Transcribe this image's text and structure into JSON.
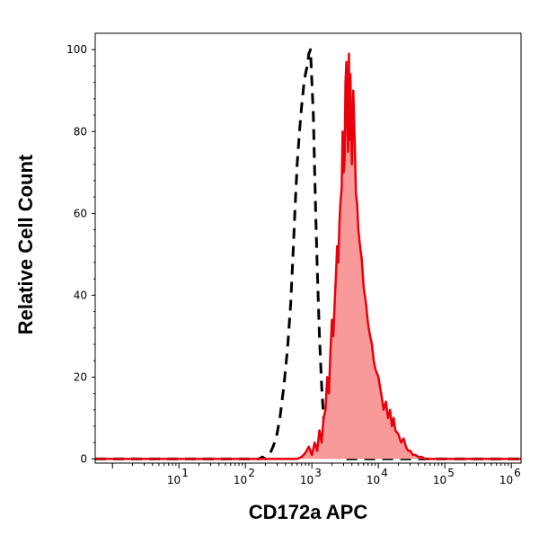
{
  "chart_data": {
    "type": "area",
    "title": "",
    "xlabel": "CD172a APC",
    "ylabel": "Relative Cell Count",
    "x_scale": "log",
    "xlim": [
      0.55,
      1400000
    ],
    "ylim": [
      -1,
      104
    ],
    "x_ticks": [
      {
        "value": 10,
        "base": "10",
        "exp": "1"
      },
      {
        "value": 100,
        "base": "10",
        "exp": "2"
      },
      {
        "value": 1000,
        "base": "10",
        "exp": "3"
      },
      {
        "value": 10000,
        "base": "10",
        "exp": "4"
      },
      {
        "value": 100000,
        "base": "10",
        "exp": "5"
      },
      {
        "value": 1000000,
        "base": "10",
        "exp": "6"
      }
    ],
    "y_ticks": [
      {
        "value": 0,
        "label": "0"
      },
      {
        "value": 20,
        "label": "20"
      },
      {
        "value": 40,
        "label": "40"
      },
      {
        "value": 60,
        "label": "60"
      },
      {
        "value": 80,
        "label": "80"
      },
      {
        "value": 100,
        "label": "100"
      }
    ],
    "grid": false,
    "series": [
      {
        "style": "dashed",
        "color": "#000000",
        "fill": "none",
        "x": [
          0.55,
          160,
          180,
          200,
          230,
          260,
          290,
          330,
          380,
          430,
          480,
          520,
          560,
          600,
          650,
          700,
          750,
          800,
          850,
          900,
          950,
          1000,
          1050,
          1100,
          1150,
          1200,
          1300,
          1400,
          1500,
          1700,
          1900,
          2100,
          2400,
          2800,
          3300,
          1400000
        ],
        "values": [
          0,
          0,
          0.5,
          0,
          1,
          3,
          5,
          10,
          18,
          27,
          38,
          50,
          62,
          72,
          80,
          86,
          91,
          94,
          96,
          99,
          100,
          92,
          84,
          70,
          58,
          47,
          30,
          18,
          10,
          5,
          2,
          1,
          0.5,
          0,
          0,
          0
        ]
      },
      {
        "style": "solid",
        "color": "#e8000b",
        "fill": "#f99a9a",
        "x": [
          0.55,
          600,
          700,
          800,
          900,
          1000,
          1100,
          1200,
          1300,
          1400,
          1500,
          1600,
          1700,
          1800,
          1900,
          2000,
          2100,
          2200,
          2300,
          2400,
          2500,
          2600,
          2700,
          2800,
          2900,
          3000,
          3100,
          3200,
          3300,
          3400,
          3500,
          3600,
          3700,
          3800,
          3900,
          4000,
          4200,
          4400,
          4600,
          4800,
          5000,
          5300,
          5600,
          6000,
          6500,
          7000,
          7500,
          8000,
          8500,
          9000,
          10000,
          11000,
          12000,
          13000,
          14000,
          15000,
          16000,
          17000,
          18000,
          20000,
          22000,
          24000,
          26000,
          28000,
          30000,
          33000,
          36000,
          40000,
          45000,
          50000,
          60000,
          1400000
        ],
        "values": [
          0,
          0,
          0.5,
          1.5,
          3,
          1,
          4,
          2,
          7,
          4,
          10,
          12,
          20,
          16,
          26,
          34,
          30,
          38,
          45,
          52,
          48,
          58,
          63,
          66,
          80,
          70,
          73,
          92,
          97,
          82,
          75,
          99,
          78,
          94,
          80,
          72,
          90,
          78,
          65,
          62,
          56,
          52,
          49,
          42,
          38,
          33,
          30,
          28,
          24,
          22,
          20,
          16,
          12,
          14,
          10,
          12,
          8,
          10,
          7,
          6,
          4,
          5,
          3,
          2,
          2,
          1,
          1,
          0.5,
          0.5,
          0,
          0,
          0
        ]
      }
    ]
  }
}
